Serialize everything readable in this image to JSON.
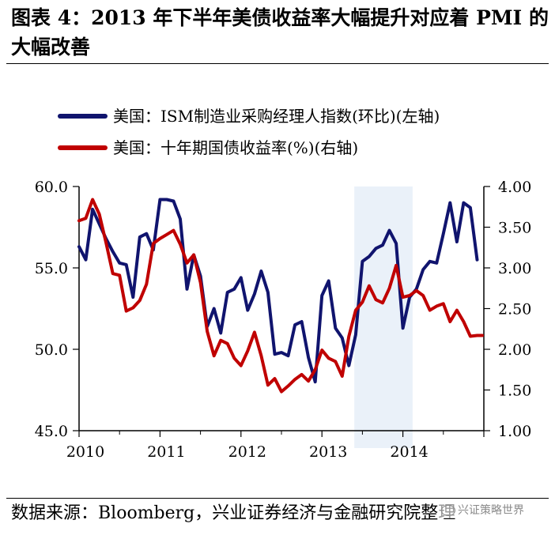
{
  "figure": {
    "title": "图表 4：2013 年下半年美债收益率大幅提升对应着 PMI 的大幅改善",
    "source": "数据来源：Bloomberg，兴业证券经济与金融研究院整理",
    "watermark": "兴证策略世界"
  },
  "chart_data": {
    "type": "line",
    "title": "图表 4：2013 年下半年美债收益率大幅提升对应着 PMI 的大幅改善",
    "x_ticks": [
      "2010",
      "2011",
      "2012",
      "2013",
      "2014"
    ],
    "x_range": [
      2010.0,
      2015.0
    ],
    "shaded_region": {
      "x_start": 2013.4,
      "x_end": 2014.12,
      "color": "#eaf1f9"
    },
    "y_left": {
      "range": [
        45.0,
        60.0
      ],
      "ticks": [
        "45.0",
        "50.0",
        "55.0",
        "60.0"
      ]
    },
    "y_right": {
      "range": [
        1.0,
        4.0
      ],
      "ticks": [
        "1.00",
        "1.50",
        "2.00",
        "2.50",
        "3.00",
        "3.50",
        "4.00"
      ]
    },
    "series": [
      {
        "name": "美国：ISM制造业采购经理人指数(环比)(左轴)",
        "axis": "left",
        "color": "#10146e",
        "x": [
          2010.0,
          2010.083,
          2010.167,
          2010.25,
          2010.333,
          2010.417,
          2010.5,
          2010.583,
          2010.667,
          2010.75,
          2010.833,
          2010.917,
          2011.0,
          2011.083,
          2011.167,
          2011.25,
          2011.333,
          2011.417,
          2011.5,
          2011.583,
          2011.667,
          2011.75,
          2011.833,
          2011.917,
          2012.0,
          2012.083,
          2012.167,
          2012.25,
          2012.333,
          2012.417,
          2012.5,
          2012.583,
          2012.667,
          2012.75,
          2012.833,
          2012.917,
          2013.0,
          2013.083,
          2013.167,
          2013.25,
          2013.333,
          2013.417,
          2013.5,
          2013.583,
          2013.667,
          2013.75,
          2013.833,
          2013.917,
          2014.0,
          2014.083,
          2014.167,
          2014.25,
          2014.333,
          2014.417,
          2014.5,
          2014.583,
          2014.667,
          2014.75,
          2014.833,
          2014.917
        ],
        "values": [
          56.3,
          55.5,
          58.6,
          57.7,
          56.8,
          56.0,
          55.3,
          55.2,
          53.2,
          56.9,
          57.1,
          56.1,
          59.2,
          59.2,
          59.1,
          58.0,
          53.7,
          55.8,
          54.5,
          51.4,
          52.5,
          51.0,
          53.5,
          53.7,
          54.4,
          52.4,
          53.4,
          54.8,
          53.5,
          49.7,
          49.8,
          49.6,
          51.5,
          51.7,
          49.5,
          48.0,
          53.3,
          54.2,
          51.3,
          50.7,
          49.0,
          50.9,
          55.4,
          55.7,
          56.2,
          56.4,
          57.3,
          56.5,
          51.3,
          53.2,
          53.7,
          54.9,
          55.4,
          55.3,
          57.1,
          59.0,
          56.6,
          59.0,
          58.7,
          55.5
        ]
      },
      {
        "name": "美国：十年期国债收益率(%)(右轴)",
        "axis": "right",
        "color": "#c00000",
        "x": [
          2010.0,
          2010.083,
          2010.167,
          2010.25,
          2010.333,
          2010.417,
          2010.5,
          2010.583,
          2010.667,
          2010.75,
          2010.833,
          2010.917,
          2011.0,
          2011.083,
          2011.167,
          2011.25,
          2011.333,
          2011.417,
          2011.5,
          2011.583,
          2011.667,
          2011.75,
          2011.833,
          2011.917,
          2012.0,
          2012.083,
          2012.167,
          2012.25,
          2012.333,
          2012.417,
          2012.5,
          2012.583,
          2012.667,
          2012.75,
          2012.833,
          2012.917,
          2013.0,
          2013.083,
          2013.167,
          2013.25,
          2013.333,
          2013.417,
          2013.5,
          2013.583,
          2013.667,
          2013.75,
          2013.833,
          2013.917,
          2014.0,
          2014.083,
          2014.167,
          2014.25,
          2014.333,
          2014.417,
          2014.5,
          2014.583,
          2014.667,
          2014.75,
          2014.833,
          2014.917,
          2014.98
        ],
        "values": [
          3.58,
          3.61,
          3.84,
          3.66,
          3.31,
          2.93,
          2.91,
          2.47,
          2.51,
          2.6,
          2.8,
          3.3,
          3.36,
          3.41,
          3.46,
          3.29,
          3.06,
          3.16,
          2.82,
          2.22,
          1.92,
          2.11,
          2.07,
          1.89,
          1.8,
          1.98,
          2.21,
          1.92,
          1.56,
          1.64,
          1.48,
          1.55,
          1.63,
          1.69,
          1.61,
          1.75,
          1.99,
          1.89,
          1.85,
          1.67,
          2.16,
          2.48,
          2.58,
          2.78,
          2.61,
          2.57,
          2.75,
          3.03,
          2.64,
          2.66,
          2.72,
          2.66,
          2.48,
          2.53,
          2.56,
          2.34,
          2.48,
          2.34,
          2.16,
          2.17,
          2.17
        ]
      }
    ],
    "legend_position": "top-left",
    "grid": false
  }
}
